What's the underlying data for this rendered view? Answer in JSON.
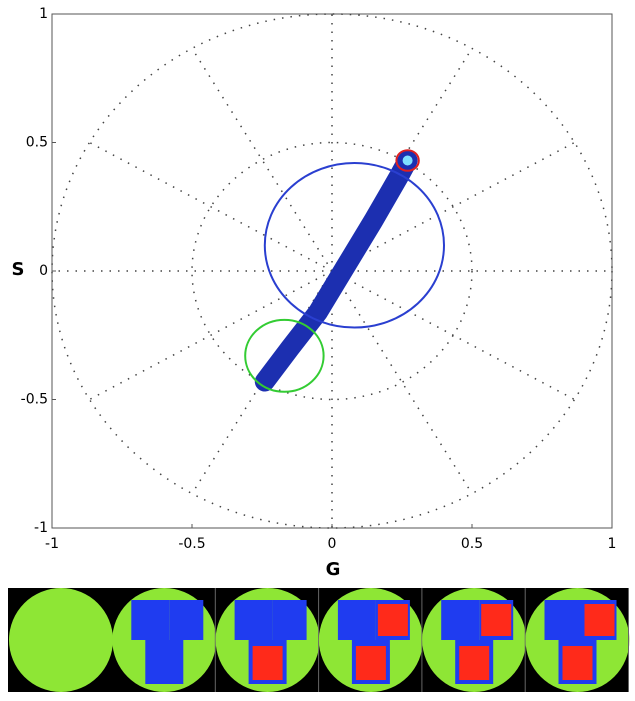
{
  "chart_data": {
    "type": "phasor",
    "xlabel": "G",
    "ylabel": "S",
    "xlim": [
      -1,
      1
    ],
    "ylim": [
      -1,
      1
    ],
    "xticks": [
      -1,
      -0.5,
      0,
      0.5,
      1
    ],
    "yticks": [
      -1,
      -0.5,
      0,
      0.5,
      1
    ],
    "polar_grid": true,
    "cloud": {
      "color": "#1c2fb0",
      "x": [
        -0.24,
        -0.15,
        -0.05,
        0.05,
        0.15,
        0.24,
        0.27
      ],
      "y": [
        -0.43,
        -0.3,
        -0.16,
        0.02,
        0.2,
        0.37,
        0.43
      ]
    },
    "circles": [
      {
        "x": 0.27,
        "y": 0.43,
        "r": 0.04,
        "color": "#e02020"
      },
      {
        "x": 0.08,
        "y": 0.1,
        "r": 0.32,
        "color": "#2a3fd0"
      },
      {
        "x": -0.17,
        "y": -0.33,
        "r": 0.14,
        "color": "#33cc33"
      }
    ]
  }
}
